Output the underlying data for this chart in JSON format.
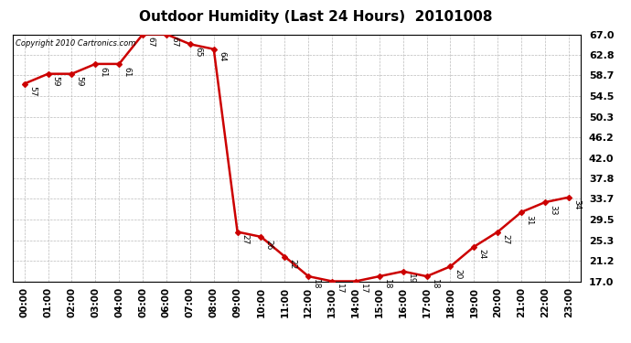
{
  "title": "Outdoor Humidity (Last 24 Hours)  20101008",
  "copyright": "Copyright 2010 Cartronics.com",
  "hours": [
    0,
    1,
    2,
    3,
    4,
    5,
    6,
    7,
    8,
    9,
    10,
    11,
    12,
    13,
    14,
    15,
    16,
    17,
    18,
    19,
    20,
    21,
    22,
    23
  ],
  "x_labels": [
    "00:00",
    "01:00",
    "02:00",
    "03:00",
    "04:00",
    "05:00",
    "06:00",
    "07:00",
    "08:00",
    "09:00",
    "10:00",
    "11:00",
    "12:00",
    "13:00",
    "14:00",
    "15:00",
    "16:00",
    "17:00",
    "18:00",
    "19:00",
    "20:00",
    "21:00",
    "22:00",
    "23:00"
  ],
  "values": [
    57,
    59,
    59,
    61,
    61,
    67,
    67,
    65,
    64,
    27,
    26,
    22,
    18,
    17,
    17,
    18,
    19,
    18,
    20,
    24,
    27,
    31,
    33,
    34
  ],
  "y_ticks": [
    17.0,
    21.2,
    25.3,
    29.5,
    33.7,
    37.8,
    42.0,
    46.2,
    50.3,
    54.5,
    58.7,
    62.8,
    67.0
  ],
  "ylim": [
    17.0,
    67.0
  ],
  "line_color": "#cc0000",
  "marker_color": "#cc0000",
  "bg_color": "#ffffff",
  "grid_color": "#bbbbbb",
  "title_fontsize": 11,
  "annotation_fontsize": 6.5,
  "tick_fontsize": 7.5,
  "ytick_fontsize": 8
}
